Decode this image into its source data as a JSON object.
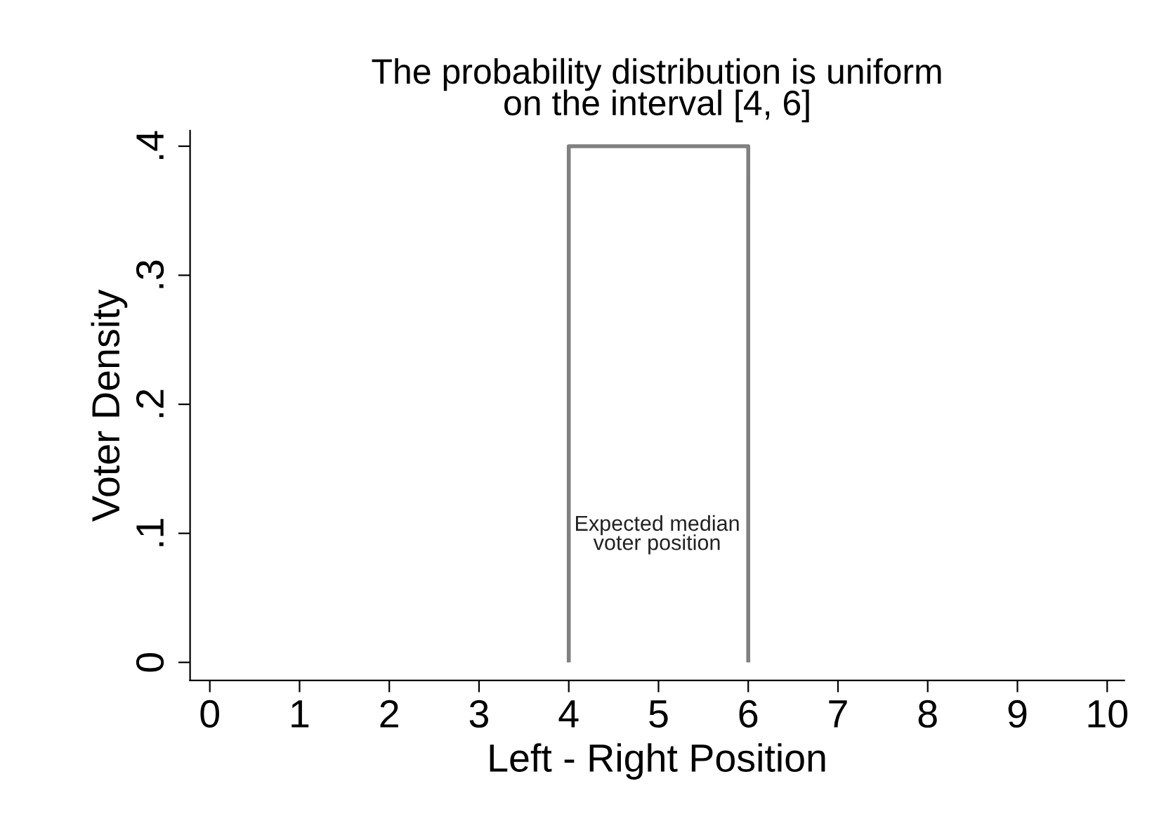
{
  "chart_data": {
    "type": "histogram",
    "title": "The probability distribution is uniform\non the interval [4, 6]",
    "xlabel": "Left - Right Position",
    "ylabel": "Voter Density",
    "bins": [
      4,
      6
    ],
    "values": [
      0.4
    ],
    "color": "#808080",
    "xlim": [
      -0.22,
      10.19
    ],
    "xticks": [
      0,
      1,
      2,
      3,
      4,
      5,
      6,
      7,
      8,
      9,
      10
    ],
    "ylim": [
      -0.014,
      0.412
    ],
    "yticks": [
      0,
      {
        "value": 0.1,
        "label": ".1"
      },
      {
        "value": 0.2,
        "label": ".2"
      },
      {
        "value": 0.3,
        "label": ".3"
      },
      {
        "value": 0.4,
        "label": ".4"
      }
    ],
    "annotations": [
      "Expected median\nvoter position"
    ],
    "grid": false,
    "legend": false
  }
}
